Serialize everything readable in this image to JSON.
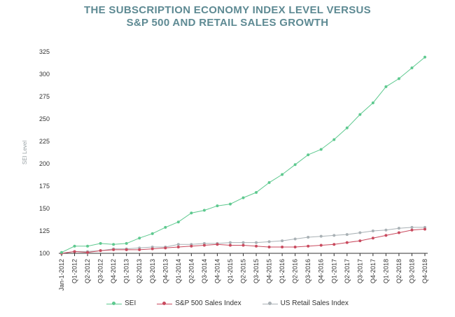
{
  "title_line1": "THE SUBSCRIPTION ECONOMY INDEX LEVEL VERSUS",
  "title_line2": "S&P 500 AND RETAIL SALES GROWTH",
  "chart_data": {
    "type": "line",
    "ylabel": "SEI Level",
    "ylim": [
      100,
      325
    ],
    "yticks": [
      100,
      125,
      150,
      175,
      200,
      225,
      250,
      275,
      300,
      325
    ],
    "grid": false,
    "legend_position": "bottom",
    "x": [
      "Jan-1-2012",
      "Q1-2012",
      "Q2-2012",
      "Q3-2012",
      "Q4-2012",
      "Q1-2013",
      "Q2-2013",
      "Q3-2013",
      "Q4-2013",
      "Q1-2014",
      "Q2-2014",
      "Q3-2014",
      "Q4-2014",
      "Q1-2015",
      "Q2-2015",
      "Q3-2015",
      "Q4-2015",
      "Q1-2016",
      "Q2-2016",
      "Q3-2016",
      "Q4-2016",
      "Q1-2017",
      "Q2-2017",
      "Q3-2017",
      "Q4-2017",
      "Q1-2018",
      "Q2-2018",
      "Q3-2018",
      "Q4-2018"
    ],
    "series": [
      {
        "name": "SEI",
        "color": "#5ec98f",
        "values": [
          101,
          108,
          108,
          111,
          110,
          111,
          117,
          122,
          129,
          135,
          145,
          148,
          153,
          155,
          162,
          168,
          179,
          188,
          199,
          210,
          216,
          227,
          240,
          255,
          268,
          286,
          295,
          307,
          319
        ]
      },
      {
        "name": "S&P 500 Sales Index",
        "color": "#c94a5e",
        "values": [
          100,
          102,
          101,
          103,
          104,
          104,
          104,
          105,
          106,
          107,
          108,
          109,
          110,
          109,
          109,
          108,
          107,
          107,
          107,
          108,
          109,
          110,
          112,
          114,
          117,
          120,
          123,
          126,
          127
        ]
      },
      {
        "name": "US Retail Sales Index",
        "color": "#a9b1b5",
        "values": [
          100,
          102,
          102,
          103,
          105,
          105,
          106,
          107,
          107,
          110,
          110,
          111,
          111,
          112,
          112,
          112,
          113,
          114,
          116,
          118,
          119,
          120,
          121,
          123,
          125,
          126,
          128,
          129,
          129
        ]
      }
    ]
  }
}
